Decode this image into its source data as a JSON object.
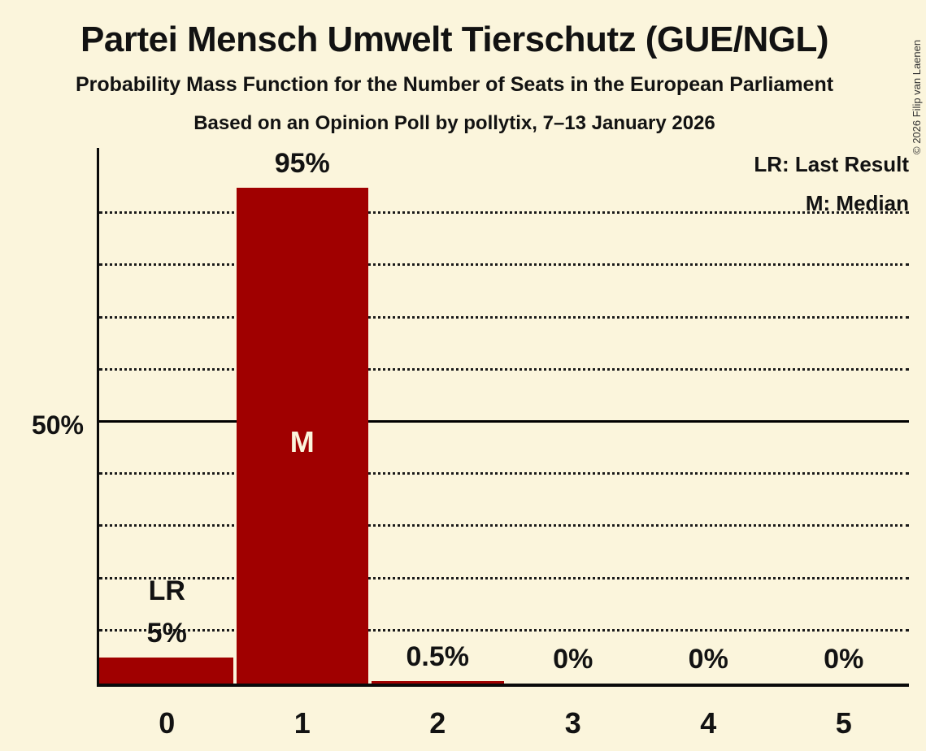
{
  "title": "Partei Mensch Umwelt Tierschutz (GUE/NGL)",
  "subtitle": "Probability Mass Function for the Number of Seats in the European Parliament",
  "subsubtitle": "Based on an Opinion Poll by pollytix, 7–13 January 2026",
  "copyright": "© 2026 Filip van Laenen",
  "legend": {
    "lr": "LR: Last Result",
    "m": "M: Median"
  },
  "y_axis": {
    "label_50": "50%"
  },
  "colors": {
    "background": "#FBF5DC",
    "bar": "#A00000",
    "text": "#121212",
    "median_text": "#FBF5DC"
  },
  "chart_data": {
    "type": "bar",
    "title": "Partei Mensch Umwelt Tierschutz (GUE/NGL)",
    "categories": [
      "0",
      "1",
      "2",
      "3",
      "4",
      "5"
    ],
    "values": [
      5,
      95,
      0.5,
      0,
      0,
      0
    ],
    "bar_labels": [
      "5%",
      "95%",
      "0.5%",
      "0%",
      "0%",
      "0%"
    ],
    "xlabel": "",
    "ylabel": "",
    "ylim": [
      0,
      100
    ],
    "gridlines_pct": [
      10,
      20,
      30,
      40,
      50,
      60,
      70,
      80,
      90
    ],
    "solid_gridline_pct": 50,
    "legend_position": "top-right",
    "annotations": {
      "last_result_label": "LR",
      "last_result_seat": 0,
      "median_label": "M",
      "median_seat": 1
    }
  }
}
